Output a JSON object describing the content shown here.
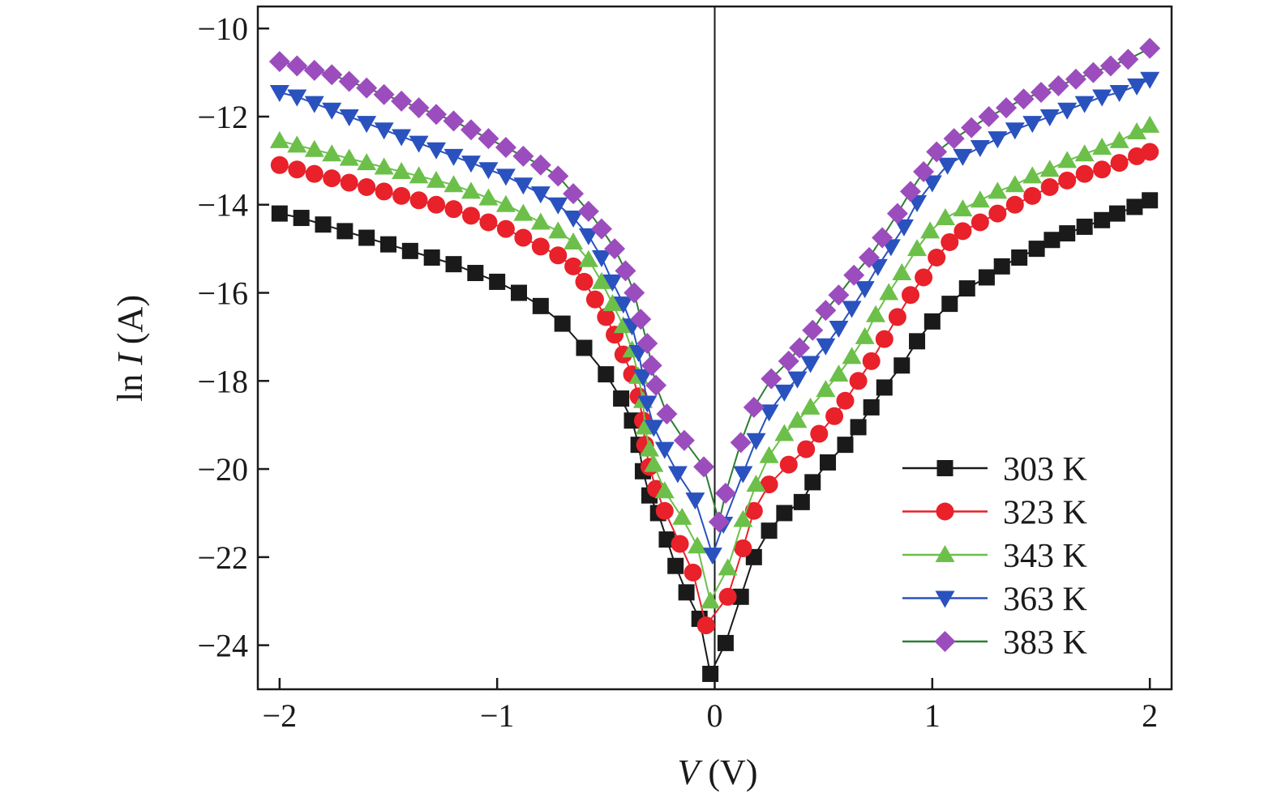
{
  "chart_data": {
    "type": "line",
    "xlabel": "V (V)",
    "xlabel_parts": {
      "var": "V",
      "unit": " (V)"
    },
    "ylabel": "ln I (A)",
    "ylabel_parts": {
      "fn": "ln ",
      "var": "I",
      "unit": " (A)"
    },
    "xlim": [
      -2.1,
      2.1
    ],
    "ylim": [
      -25.0,
      -9.5
    ],
    "xticks": [
      -2,
      -1,
      0,
      1,
      2
    ],
    "xtick_labels": [
      "−2",
      "−1",
      "0",
      "1",
      "2"
    ],
    "yticks": [
      -10,
      -12,
      -14,
      -16,
      -18,
      -20,
      -22,
      -24
    ],
    "ytick_labels": [
      "−10",
      "−12",
      "−14",
      "−16",
      "−18",
      "−20",
      "−22",
      "−24"
    ],
    "grid": false,
    "legend_position": "bottom-right",
    "zero_line": true,
    "series": [
      {
        "name": "303 K",
        "color": "#1a1a1a",
        "marker": "square",
        "points": [
          [
            -2.0,
            -14.2
          ],
          [
            -1.9,
            -14.3
          ],
          [
            -1.8,
            -14.45
          ],
          [
            -1.7,
            -14.6
          ],
          [
            -1.6,
            -14.75
          ],
          [
            -1.5,
            -14.9
          ],
          [
            -1.4,
            -15.05
          ],
          [
            -1.3,
            -15.2
          ],
          [
            -1.2,
            -15.35
          ],
          [
            -1.1,
            -15.55
          ],
          [
            -1.0,
            -15.75
          ],
          [
            -0.9,
            -16.0
          ],
          [
            -0.8,
            -16.3
          ],
          [
            -0.7,
            -16.7
          ],
          [
            -0.6,
            -17.25
          ],
          [
            -0.5,
            -17.85
          ],
          [
            -0.43,
            -18.4
          ],
          [
            -0.38,
            -18.9
          ],
          [
            -0.35,
            -19.45
          ],
          [
            -0.33,
            -20.05
          ],
          [
            -0.3,
            -20.6
          ],
          [
            -0.26,
            -21.0
          ],
          [
            -0.22,
            -21.6
          ],
          [
            -0.18,
            -22.2
          ],
          [
            -0.13,
            -22.8
          ],
          [
            -0.07,
            -23.4
          ],
          [
            -0.02,
            -24.65
          ],
          [
            0.05,
            -23.95
          ],
          [
            0.12,
            -22.9
          ],
          [
            0.18,
            -22.0
          ],
          [
            0.25,
            -21.4
          ],
          [
            0.32,
            -21.0
          ],
          [
            0.4,
            -20.75
          ],
          [
            0.45,
            -20.3
          ],
          [
            0.52,
            -19.85
          ],
          [
            0.6,
            -19.45
          ],
          [
            0.66,
            -19.05
          ],
          [
            0.72,
            -18.6
          ],
          [
            0.78,
            -18.15
          ],
          [
            0.86,
            -17.65
          ],
          [
            0.93,
            -17.1
          ],
          [
            1.0,
            -16.65
          ],
          [
            1.08,
            -16.25
          ],
          [
            1.16,
            -15.9
          ],
          [
            1.25,
            -15.65
          ],
          [
            1.32,
            -15.4
          ],
          [
            1.4,
            -15.2
          ],
          [
            1.48,
            -15.0
          ],
          [
            1.55,
            -14.8
          ],
          [
            1.62,
            -14.65
          ],
          [
            1.7,
            -14.5
          ],
          [
            1.78,
            -14.35
          ],
          [
            1.85,
            -14.2
          ],
          [
            1.93,
            -14.05
          ],
          [
            2.0,
            -13.9
          ]
        ]
      },
      {
        "name": "323 K",
        "color": "#e8212a",
        "marker": "circle",
        "points": [
          [
            -2.0,
            -13.1
          ],
          [
            -1.92,
            -13.2
          ],
          [
            -1.84,
            -13.3
          ],
          [
            -1.76,
            -13.4
          ],
          [
            -1.68,
            -13.5
          ],
          [
            -1.6,
            -13.6
          ],
          [
            -1.52,
            -13.7
          ],
          [
            -1.44,
            -13.8
          ],
          [
            -1.36,
            -13.9
          ],
          [
            -1.28,
            -14.0
          ],
          [
            -1.2,
            -14.1
          ],
          [
            -1.12,
            -14.25
          ],
          [
            -1.04,
            -14.4
          ],
          [
            -0.96,
            -14.55
          ],
          [
            -0.88,
            -14.75
          ],
          [
            -0.8,
            -14.95
          ],
          [
            -0.72,
            -15.15
          ],
          [
            -0.65,
            -15.4
          ],
          [
            -0.6,
            -15.75
          ],
          [
            -0.55,
            -16.15
          ],
          [
            -0.5,
            -16.55
          ],
          [
            -0.46,
            -16.95
          ],
          [
            -0.42,
            -17.4
          ],
          [
            -0.38,
            -17.85
          ],
          [
            -0.35,
            -18.35
          ],
          [
            -0.33,
            -18.9
          ],
          [
            -0.32,
            -19.45
          ],
          [
            -0.3,
            -19.95
          ],
          [
            -0.27,
            -20.45
          ],
          [
            -0.23,
            -20.95
          ],
          [
            -0.16,
            -21.7
          ],
          [
            -0.1,
            -22.35
          ],
          [
            -0.04,
            -23.55
          ],
          [
            0.06,
            -22.9
          ],
          [
            0.13,
            -21.8
          ],
          [
            0.18,
            -20.95
          ],
          [
            0.25,
            -20.35
          ],
          [
            0.34,
            -19.9
          ],
          [
            0.42,
            -19.55
          ],
          [
            0.48,
            -19.2
          ],
          [
            0.55,
            -18.8
          ],
          [
            0.6,
            -18.45
          ],
          [
            0.66,
            -18.0
          ],
          [
            0.72,
            -17.55
          ],
          [
            0.78,
            -17.05
          ],
          [
            0.84,
            -16.55
          ],
          [
            0.9,
            -16.05
          ],
          [
            0.96,
            -15.65
          ],
          [
            1.02,
            -15.2
          ],
          [
            1.08,
            -14.85
          ],
          [
            1.14,
            -14.6
          ],
          [
            1.22,
            -14.4
          ],
          [
            1.3,
            -14.2
          ],
          [
            1.38,
            -14.0
          ],
          [
            1.46,
            -13.8
          ],
          [
            1.54,
            -13.6
          ],
          [
            1.62,
            -13.45
          ],
          [
            1.7,
            -13.3
          ],
          [
            1.78,
            -13.2
          ],
          [
            1.86,
            -13.05
          ],
          [
            1.94,
            -12.9
          ],
          [
            2.0,
            -12.8
          ]
        ]
      },
      {
        "name": "343 K",
        "color": "#6cc04a",
        "marker": "triangle-up",
        "points": [
          [
            -2.0,
            -12.55
          ],
          [
            -1.92,
            -12.65
          ],
          [
            -1.84,
            -12.75
          ],
          [
            -1.76,
            -12.85
          ],
          [
            -1.68,
            -12.95
          ],
          [
            -1.6,
            -13.05
          ],
          [
            -1.52,
            -13.15
          ],
          [
            -1.44,
            -13.25
          ],
          [
            -1.36,
            -13.35
          ],
          [
            -1.28,
            -13.45
          ],
          [
            -1.2,
            -13.55
          ],
          [
            -1.12,
            -13.7
          ],
          [
            -1.04,
            -13.85
          ],
          [
            -0.96,
            -14.0
          ],
          [
            -0.88,
            -14.2
          ],
          [
            -0.8,
            -14.4
          ],
          [
            -0.72,
            -14.6
          ],
          [
            -0.65,
            -14.85
          ],
          [
            -0.58,
            -15.25
          ],
          [
            -0.52,
            -15.75
          ],
          [
            -0.47,
            -16.25
          ],
          [
            -0.42,
            -16.75
          ],
          [
            -0.38,
            -17.3
          ],
          [
            -0.35,
            -17.9
          ],
          [
            -0.33,
            -18.45
          ],
          [
            -0.32,
            -19.05
          ],
          [
            -0.3,
            -19.55
          ],
          [
            -0.28,
            -19.9
          ],
          [
            -0.23,
            -20.5
          ],
          [
            -0.15,
            -21.1
          ],
          [
            -0.08,
            -21.75
          ],
          [
            -0.02,
            -23.0
          ],
          [
            0.06,
            -22.25
          ],
          [
            0.13,
            -21.15
          ],
          [
            0.19,
            -20.35
          ],
          [
            0.25,
            -19.7
          ],
          [
            0.32,
            -19.2
          ],
          [
            0.38,
            -18.9
          ],
          [
            0.44,
            -18.6
          ],
          [
            0.51,
            -18.2
          ],
          [
            0.57,
            -17.85
          ],
          [
            0.63,
            -17.45
          ],
          [
            0.69,
            -17.0
          ],
          [
            0.74,
            -16.5
          ],
          [
            0.8,
            -16.0
          ],
          [
            0.86,
            -15.55
          ],
          [
            0.93,
            -15.0
          ],
          [
            0.99,
            -14.6
          ],
          [
            1.06,
            -14.3
          ],
          [
            1.14,
            -14.1
          ],
          [
            1.22,
            -13.9
          ],
          [
            1.3,
            -13.7
          ],
          [
            1.38,
            -13.55
          ],
          [
            1.46,
            -13.35
          ],
          [
            1.54,
            -13.2
          ],
          [
            1.62,
            -13.0
          ],
          [
            1.7,
            -12.85
          ],
          [
            1.78,
            -12.7
          ],
          [
            1.86,
            -12.55
          ],
          [
            1.94,
            -12.35
          ],
          [
            2.0,
            -12.2
          ]
        ]
      },
      {
        "name": "363 K",
        "color": "#2a52be",
        "marker": "triangle-down",
        "points": [
          [
            -2.0,
            -11.45
          ],
          [
            -1.92,
            -11.55
          ],
          [
            -1.84,
            -11.7
          ],
          [
            -1.76,
            -11.85
          ],
          [
            -1.68,
            -12.0
          ],
          [
            -1.6,
            -12.15
          ],
          [
            -1.52,
            -12.3
          ],
          [
            -1.44,
            -12.45
          ],
          [
            -1.36,
            -12.6
          ],
          [
            -1.28,
            -12.75
          ],
          [
            -1.2,
            -12.9
          ],
          [
            -1.12,
            -13.05
          ],
          [
            -1.04,
            -13.2
          ],
          [
            -0.96,
            -13.35
          ],
          [
            -0.88,
            -13.55
          ],
          [
            -0.8,
            -13.75
          ],
          [
            -0.72,
            -14.0
          ],
          [
            -0.65,
            -14.3
          ],
          [
            -0.58,
            -14.7
          ],
          [
            -0.52,
            -15.2
          ],
          [
            -0.47,
            -15.75
          ],
          [
            -0.42,
            -16.25
          ],
          [
            -0.38,
            -16.75
          ],
          [
            -0.35,
            -17.35
          ],
          [
            -0.33,
            -17.9
          ],
          [
            -0.31,
            -18.5
          ],
          [
            -0.28,
            -19.05
          ],
          [
            -0.23,
            -19.55
          ],
          [
            -0.17,
            -20.1
          ],
          [
            -0.09,
            -20.7
          ],
          [
            -0.01,
            -21.95
          ],
          [
            0.04,
            -21.25
          ],
          [
            0.13,
            -20.1
          ],
          [
            0.19,
            -19.35
          ],
          [
            0.25,
            -18.7
          ],
          [
            0.32,
            -18.25
          ],
          [
            0.38,
            -17.95
          ],
          [
            0.44,
            -17.6
          ],
          [
            0.51,
            -17.2
          ],
          [
            0.57,
            -16.8
          ],
          [
            0.63,
            -16.35
          ],
          [
            0.69,
            -15.9
          ],
          [
            0.75,
            -15.4
          ],
          [
            0.81,
            -14.95
          ],
          [
            0.87,
            -14.5
          ],
          [
            0.93,
            -13.95
          ],
          [
            1.0,
            -13.5
          ],
          [
            1.07,
            -13.1
          ],
          [
            1.14,
            -12.9
          ],
          [
            1.22,
            -12.7
          ],
          [
            1.3,
            -12.5
          ],
          [
            1.38,
            -12.3
          ],
          [
            1.46,
            -12.15
          ],
          [
            1.54,
            -12.0
          ],
          [
            1.62,
            -11.85
          ],
          [
            1.7,
            -11.7
          ],
          [
            1.78,
            -11.55
          ],
          [
            1.86,
            -11.45
          ],
          [
            1.94,
            -11.3
          ],
          [
            2.0,
            -11.15
          ]
        ]
      },
      {
        "name": "383 K",
        "color": "#9b4dbd",
        "line_color": "#2e7d32",
        "marker": "diamond",
        "points": [
          [
            -2.0,
            -10.75
          ],
          [
            -1.92,
            -10.85
          ],
          [
            -1.84,
            -10.95
          ],
          [
            -1.76,
            -11.05
          ],
          [
            -1.68,
            -11.2
          ],
          [
            -1.6,
            -11.35
          ],
          [
            -1.52,
            -11.5
          ],
          [
            -1.44,
            -11.65
          ],
          [
            -1.36,
            -11.8
          ],
          [
            -1.28,
            -11.95
          ],
          [
            -1.2,
            -12.1
          ],
          [
            -1.12,
            -12.3
          ],
          [
            -1.04,
            -12.5
          ],
          [
            -0.96,
            -12.7
          ],
          [
            -0.88,
            -12.9
          ],
          [
            -0.8,
            -13.1
          ],
          [
            -0.72,
            -13.35
          ],
          [
            -0.65,
            -13.75
          ],
          [
            -0.58,
            -14.15
          ],
          [
            -0.52,
            -14.55
          ],
          [
            -0.46,
            -15.0
          ],
          [
            -0.41,
            -15.5
          ],
          [
            -0.37,
            -16.0
          ],
          [
            -0.34,
            -16.6
          ],
          [
            -0.31,
            -17.15
          ],
          [
            -0.29,
            -17.65
          ],
          [
            -0.27,
            -18.1
          ],
          [
            -0.22,
            -18.75
          ],
          [
            -0.14,
            -19.35
          ],
          [
            -0.05,
            -19.95
          ],
          [
            0.02,
            -21.2
          ],
          [
            0.05,
            -20.55
          ],
          [
            0.12,
            -19.4
          ],
          [
            0.18,
            -18.6
          ],
          [
            0.26,
            -17.95
          ],
          [
            0.34,
            -17.55
          ],
          [
            0.39,
            -17.25
          ],
          [
            0.45,
            -16.85
          ],
          [
            0.51,
            -16.4
          ],
          [
            0.57,
            -16.05
          ],
          [
            0.64,
            -15.6
          ],
          [
            0.71,
            -15.2
          ],
          [
            0.77,
            -14.75
          ],
          [
            0.84,
            -14.2
          ],
          [
            0.9,
            -13.7
          ],
          [
            0.96,
            -13.25
          ],
          [
            1.02,
            -12.8
          ],
          [
            1.1,
            -12.5
          ],
          [
            1.18,
            -12.25
          ],
          [
            1.26,
            -12.0
          ],
          [
            1.34,
            -11.8
          ],
          [
            1.42,
            -11.6
          ],
          [
            1.5,
            -11.45
          ],
          [
            1.58,
            -11.3
          ],
          [
            1.66,
            -11.15
          ],
          [
            1.74,
            -11.0
          ],
          [
            1.82,
            -10.85
          ],
          [
            1.9,
            -10.7
          ],
          [
            2.0,
            -10.45
          ]
        ]
      }
    ]
  }
}
